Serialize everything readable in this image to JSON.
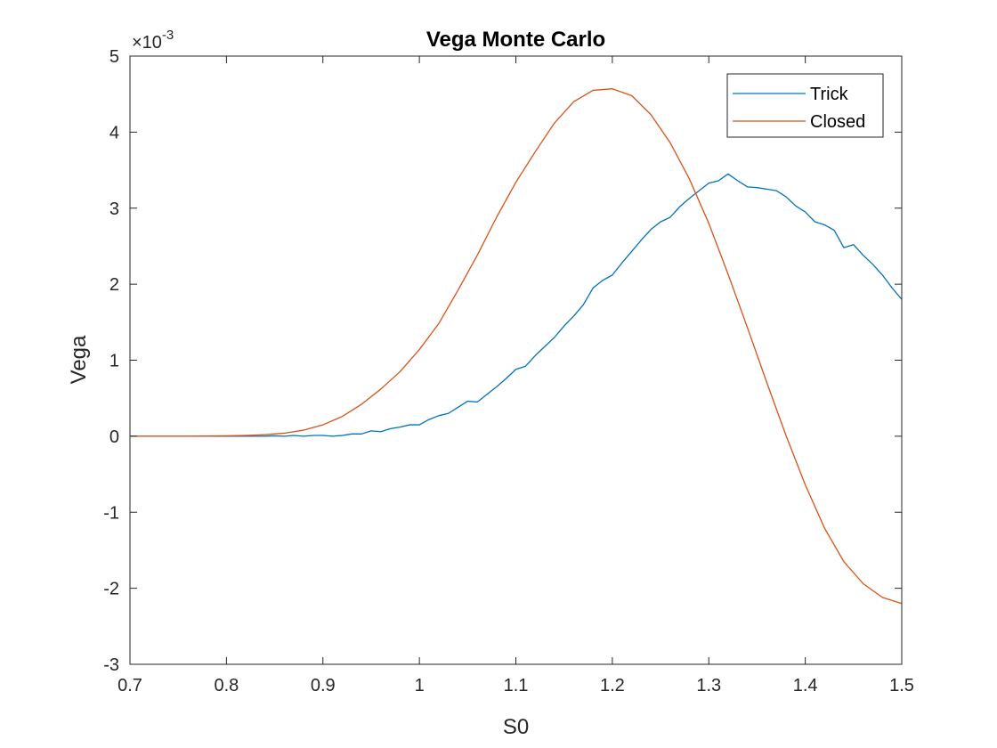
{
  "chart_data": {
    "type": "line",
    "title": "Vega Monte Carlo",
    "xlabel": "S0",
    "ylabel": "Vega",
    "xlim": [
      0.7,
      1.5
    ],
    "ylim": [
      -0.003,
      0.005
    ],
    "xticks": [
      0.7,
      0.8,
      0.9,
      1.0,
      1.1,
      1.2,
      1.3,
      1.4,
      1.5
    ],
    "xtick_labels": [
      "0.7",
      "0.8",
      "0.9",
      "1",
      "1.1",
      "1.2",
      "1.3",
      "1.4",
      "1.5"
    ],
    "yticks": [
      -0.003,
      -0.002,
      -0.001,
      0,
      0.001,
      0.002,
      0.003,
      0.004,
      0.005
    ],
    "ytick_labels": [
      "-3",
      "-2",
      "-1",
      "0",
      "1",
      "2",
      "3",
      "4",
      "5"
    ],
    "y_exponent_label": "×10",
    "y_exponent_power": "-3",
    "grid": false,
    "legend_position": "top-right",
    "series": [
      {
        "name": "Trick",
        "color": "#0072BD",
        "x": [
          0.7,
          0.72,
          0.74,
          0.76,
          0.78,
          0.8,
          0.82,
          0.84,
          0.85,
          0.86,
          0.87,
          0.88,
          0.89,
          0.9,
          0.91,
          0.92,
          0.93,
          0.94,
          0.95,
          0.96,
          0.97,
          0.98,
          0.99,
          1.0,
          1.01,
          1.02,
          1.03,
          1.04,
          1.05,
          1.06,
          1.07,
          1.08,
          1.09,
          1.1,
          1.11,
          1.12,
          1.13,
          1.14,
          1.15,
          1.16,
          1.17,
          1.18,
          1.19,
          1.2,
          1.21,
          1.22,
          1.23,
          1.24,
          1.25,
          1.26,
          1.27,
          1.28,
          1.29,
          1.3,
          1.31,
          1.32,
          1.33,
          1.34,
          1.35,
          1.36,
          1.37,
          1.38,
          1.39,
          1.4,
          1.41,
          1.42,
          1.43,
          1.44,
          1.45,
          1.46,
          1.47,
          1.48,
          1.49,
          1.5
        ],
        "values": [
          0,
          0,
          0,
          0,
          0,
          0,
          0,
          0,
          5e-06,
          0,
          1e-05,
          0,
          1e-05,
          1e-05,
          0,
          1e-05,
          3e-05,
          3e-05,
          7e-05,
          6e-05,
          0.0001,
          0.00012,
          0.00015,
          0.00015,
          0.00022,
          0.00027,
          0.0003,
          0.00038,
          0.00046,
          0.00045,
          0.00055,
          0.00065,
          0.00076,
          0.00088,
          0.00092,
          0.00106,
          0.00118,
          0.0013,
          0.00145,
          0.00158,
          0.00173,
          0.00195,
          0.00205,
          0.00212,
          0.00228,
          0.00243,
          0.00258,
          0.00272,
          0.00282,
          0.00288,
          0.00302,
          0.00313,
          0.00323,
          0.00333,
          0.00336,
          0.00345,
          0.00336,
          0.00328,
          0.00327,
          0.00325,
          0.00323,
          0.00315,
          0.00303,
          0.00295,
          0.00282,
          0.00278,
          0.00271,
          0.00248,
          0.00252,
          0.00238,
          0.00226,
          0.00212,
          0.00195,
          0.0018
        ]
      },
      {
        "name": "Closed",
        "color": "#D95319",
        "x": [
          0.7,
          0.72,
          0.74,
          0.76,
          0.78,
          0.8,
          0.82,
          0.84,
          0.86,
          0.88,
          0.9,
          0.92,
          0.94,
          0.96,
          0.98,
          1.0,
          1.02,
          1.04,
          1.06,
          1.08,
          1.1,
          1.12,
          1.14,
          1.16,
          1.18,
          1.2,
          1.22,
          1.24,
          1.26,
          1.28,
          1.3,
          1.32,
          1.34,
          1.36,
          1.38,
          1.4,
          1.42,
          1.44,
          1.46,
          1.48,
          1.5
        ],
        "values": [
          0,
          0,
          0,
          0,
          2e-06,
          5e-06,
          1e-05,
          2e-05,
          4e-05,
          8e-05,
          0.00015,
          0.00026,
          0.00042,
          0.00062,
          0.00085,
          0.00114,
          0.00148,
          0.00192,
          0.00238,
          0.00288,
          0.00334,
          0.00374,
          0.00412,
          0.0044,
          0.00455,
          0.00457,
          0.00448,
          0.00423,
          0.00386,
          0.00338,
          0.0028,
          0.00213,
          0.00143,
          0.00071,
          1e-05,
          -0.00064,
          -0.00121,
          -0.00165,
          -0.00194,
          -0.00212,
          -0.0022
        ]
      }
    ]
  }
}
